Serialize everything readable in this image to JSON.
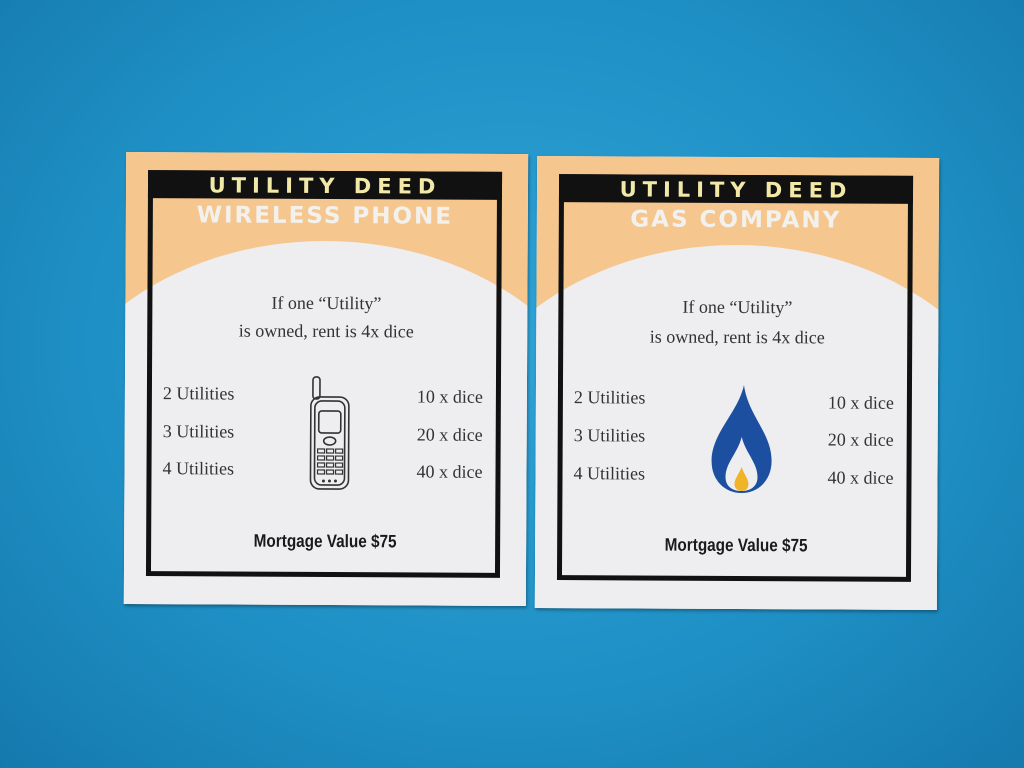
{
  "cards": [
    {
      "header": "UTILITY DEED",
      "name": "WIRELESS PHONE",
      "rule_line1": "If one “Utility”",
      "rule_line2": "is owned, rent is 4x dice",
      "rows": [
        {
          "label": "2 Utilities",
          "value": "10 x dice"
        },
        {
          "label": "3 Utilities",
          "value": "20 x dice"
        },
        {
          "label": "4 Utilities",
          "value": "40 x dice"
        }
      ],
      "mortgage": "Mortgage Value $75",
      "icon": "cell-phone-icon"
    },
    {
      "header": "UTILITY DEED",
      "name": "GAS COMPANY",
      "rule_line1": "If one “Utility”",
      "rule_line2": "is owned, rent is 4x dice",
      "rows": [
        {
          "label": "2 Utilities",
          "value": "10 x dice"
        },
        {
          "label": "3 Utilities",
          "value": "20 x dice"
        },
        {
          "label": "4 Utilities",
          "value": "40 x dice"
        }
      ],
      "mortgage": "Mortgage Value $75",
      "icon": "gas-flame-icon"
    }
  ],
  "colors": {
    "background": "#1e8fc4",
    "card_orange": "#f5c78e",
    "flame_blue": "#1d4fa0",
    "flame_yellow": "#f0b429"
  }
}
